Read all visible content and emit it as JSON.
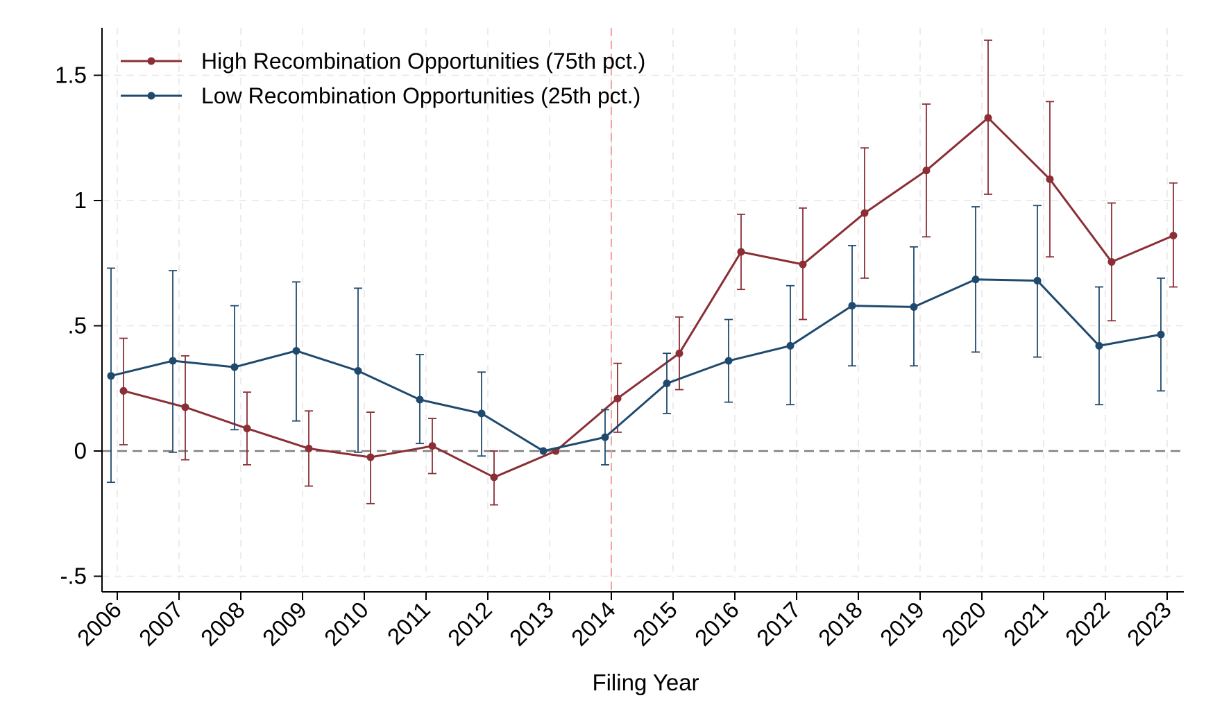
{
  "chart_data": {
    "type": "line",
    "xlabel": "Filing Year",
    "ylabel": "",
    "title": "",
    "categories": [
      "2006",
      "2007",
      "2008",
      "2009",
      "2010",
      "2011",
      "2012",
      "2013",
      "2014",
      "2015",
      "2016",
      "2017",
      "2018",
      "2019",
      "2020",
      "2021",
      "2022",
      "2023"
    ],
    "ylim": [
      -0.57,
      1.7
    ],
    "yticks": [
      {
        "value": 1.5,
        "label": "1.5"
      },
      {
        "value": 1.0,
        "label": "1"
      },
      {
        "value": 0.5,
        "label": ".5"
      },
      {
        "value": 0.0,
        "label": "0"
      },
      {
        "value": -0.5,
        "label": "-.5"
      }
    ],
    "reference_lines": {
      "horizontal_zero": {
        "value": 0,
        "color": "#808080",
        "style": "dashed"
      },
      "vertical_event": {
        "category": "2014",
        "color": "#f4a3a3",
        "style": "dashed"
      }
    },
    "grid": true,
    "legend_position": "top-left",
    "series": [
      {
        "name": "High Recombination Opportunities (75th pct.)",
        "color": "#8b2e35",
        "values": [
          0.24,
          0.175,
          0.09,
          0.01,
          -0.025,
          0.02,
          -0.105,
          0.0,
          0.21,
          0.39,
          0.795,
          0.745,
          0.95,
          1.12,
          1.33,
          1.085,
          0.755,
          0.86
        ],
        "ci_low": [
          0.025,
          -0.035,
          -0.055,
          -0.14,
          -0.21,
          -0.09,
          -0.215,
          0.0,
          0.075,
          0.245,
          0.645,
          0.525,
          0.69,
          0.855,
          1.025,
          0.775,
          0.52,
          0.655
        ],
        "ci_high": [
          0.45,
          0.38,
          0.235,
          0.16,
          0.155,
          0.13,
          0.0,
          0.0,
          0.35,
          0.535,
          0.945,
          0.97,
          1.21,
          1.385,
          1.64,
          1.395,
          0.99,
          1.07
        ]
      },
      {
        "name": "Low Recombination Opportunities (25th pct.)",
        "color": "#1f4a6e",
        "values": [
          0.3,
          0.36,
          0.335,
          0.4,
          0.32,
          0.205,
          0.15,
          0.0,
          0.055,
          0.27,
          0.36,
          0.42,
          0.58,
          0.575,
          0.685,
          0.68,
          0.42,
          0.465
        ],
        "ci_low": [
          -0.125,
          -0.005,
          0.085,
          0.12,
          -0.005,
          0.03,
          -0.02,
          0.0,
          -0.055,
          0.15,
          0.195,
          0.185,
          0.34,
          0.34,
          0.395,
          0.375,
          0.185,
          0.24
        ],
        "ci_high": [
          0.73,
          0.72,
          0.58,
          0.675,
          0.65,
          0.385,
          0.315,
          0.0,
          0.165,
          0.39,
          0.525,
          0.66,
          0.82,
          0.815,
          0.975,
          0.98,
          0.655,
          0.69
        ]
      }
    ]
  }
}
